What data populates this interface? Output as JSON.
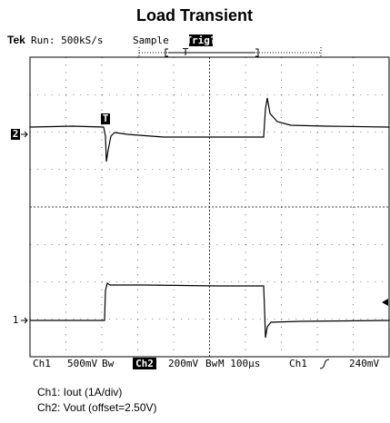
{
  "title": "Load Transient",
  "header": {
    "brand": "Tek",
    "run": "Run: 500kS/s",
    "mode": "Sample",
    "trigger": "Trig?",
    "trigger_marker": "T"
  },
  "markers": {
    "ch2": "2",
    "ch1": "1",
    "trigger_point": "T"
  },
  "status": {
    "ch1_label": "Ch1",
    "ch1_scale": "500mV",
    "ch2_label": "Ch2",
    "ch2_scale": "200mV",
    "timebase": "M 100µs",
    "trigger_source": "Ch1",
    "trigger_level": "240mV"
  },
  "captions": [
    "Ch1: Iout (1A/div)",
    "Ch2: Vout (offset=2.50V)"
  ]
}
